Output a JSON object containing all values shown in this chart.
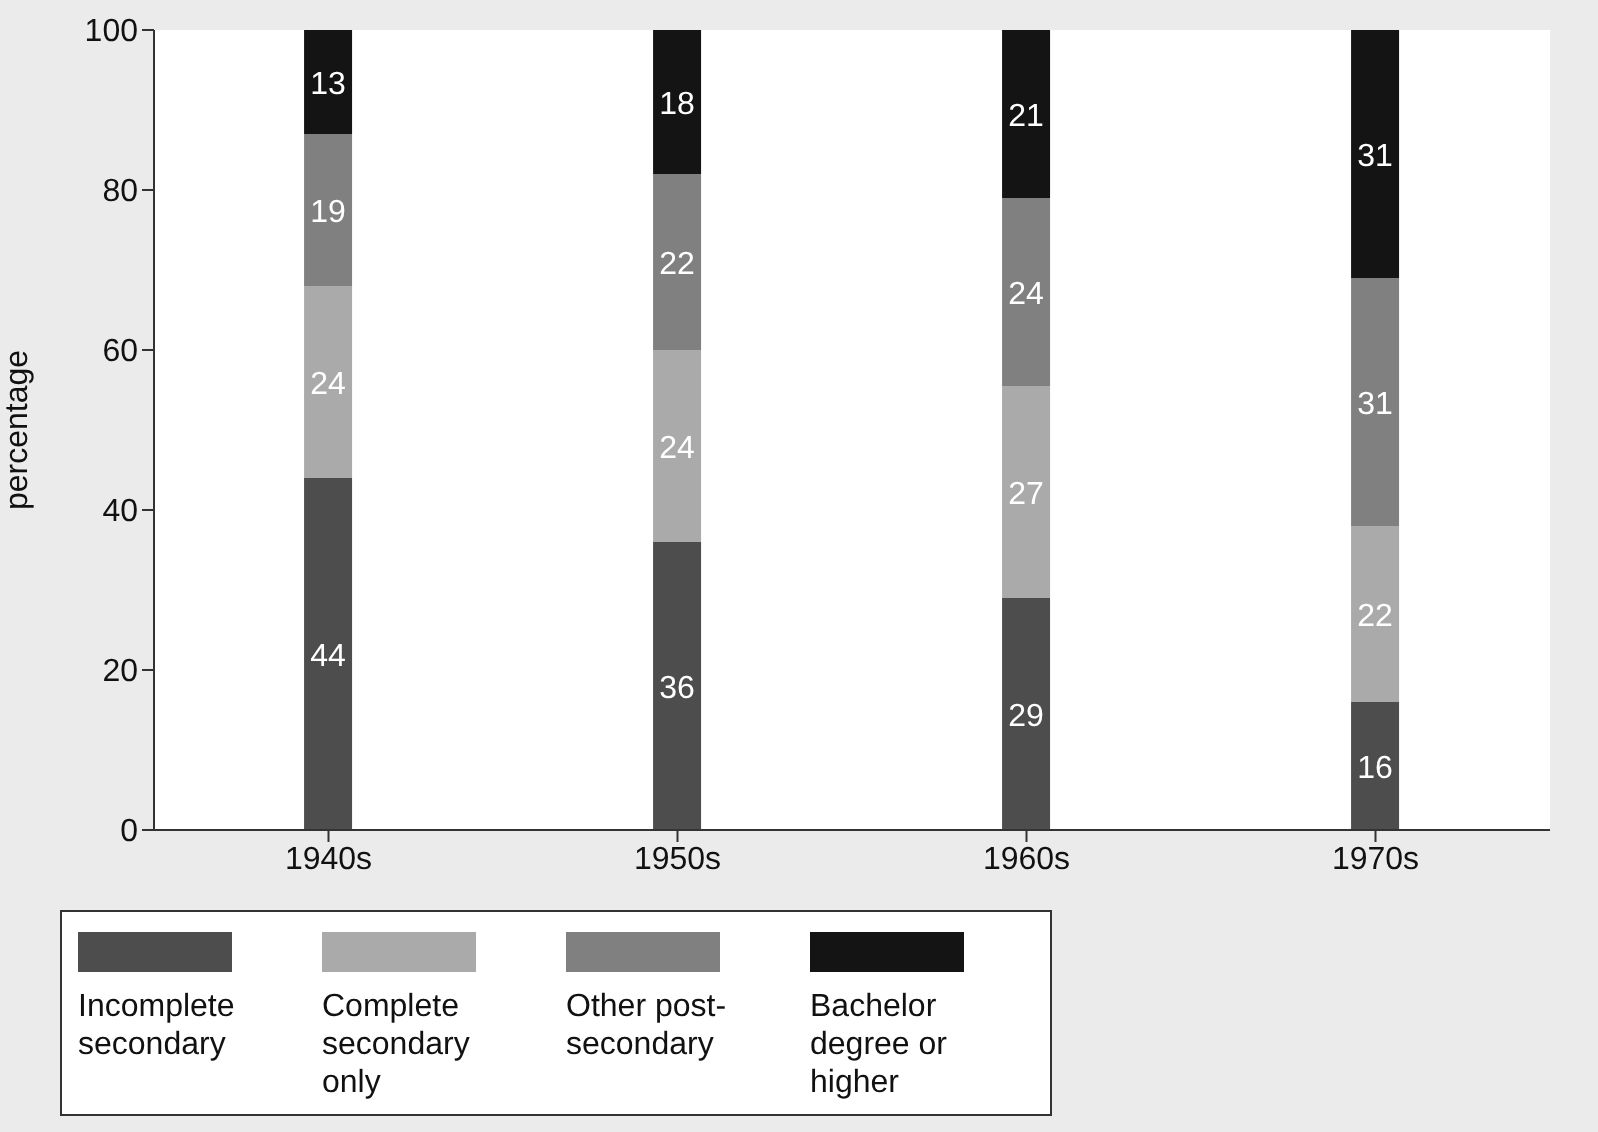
{
  "chart_data": {
    "type": "bar",
    "stacked": true,
    "ylabel": "percentage",
    "categories": [
      "1940s",
      "1950s",
      "1960s",
      "1970s"
    ],
    "ylim": [
      0,
      100
    ],
    "yticks": [
      0,
      20,
      40,
      60,
      80,
      100
    ],
    "legend": "bottom",
    "series": [
      {
        "name": "Incomplete secondary",
        "color": "#4d4d4d",
        "values": [
          44,
          36,
          29,
          16
        ],
        "value_labels": [
          "44",
          "36",
          "29",
          "16"
        ]
      },
      {
        "name": "Complete secondary only",
        "color": "#aaaaaa",
        "values": [
          24,
          24,
          26.5,
          22
        ],
        "value_labels": [
          "24",
          "24",
          "27",
          "22"
        ]
      },
      {
        "name": "Other post-secondary",
        "color": "#808080",
        "values": [
          19,
          22,
          23.5,
          31
        ],
        "value_labels": [
          "19",
          "22",
          "24",
          "31"
        ]
      },
      {
        "name": "Bachelor degree or higher",
        "color": "#141414",
        "values": [
          13,
          18,
          21,
          31
        ],
        "value_labels": [
          "13",
          "18",
          "21",
          "31"
        ]
      }
    ]
  }
}
